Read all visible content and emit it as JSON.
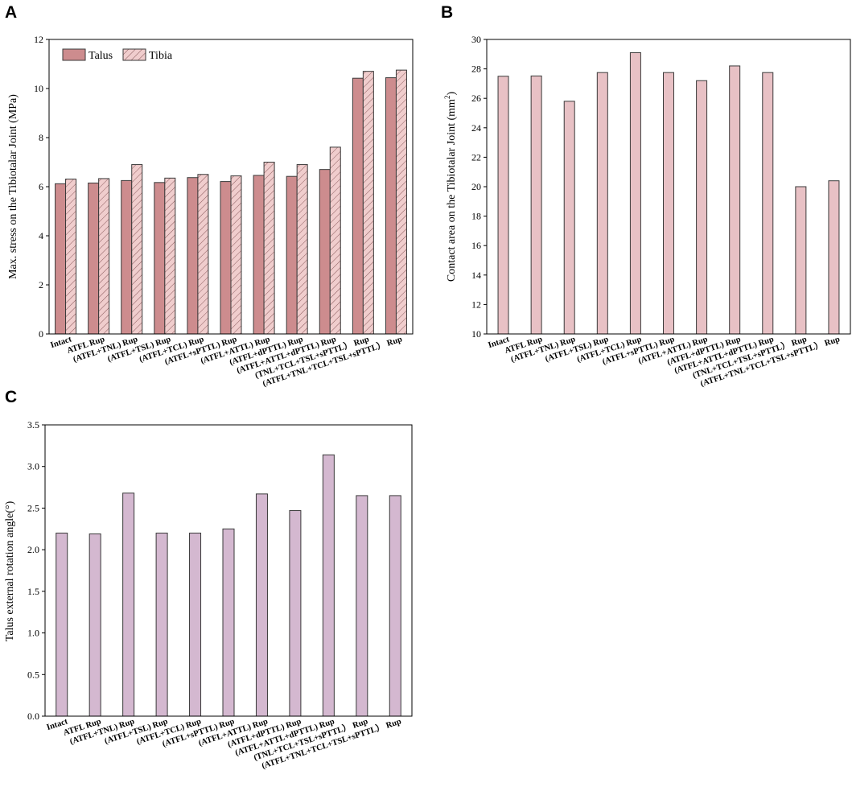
{
  "categories": [
    "Intact",
    "ATFL Rup",
    "(ATFL+TNL) Rup",
    "(ATFL+TSL) Rup",
    "(ATFL+TCL) Rup",
    "(ATFL+sPTTL) Rup",
    "(ATFL+ATTL) Rup",
    "(ATFL+dPTTL) Rup",
    "(ATFL+ATTL+dPTTL) Rup",
    "(TNL+TCL+TSL+sPTTL） Rup",
    "(ATFL+TNL+TCL+TSL+sPTTL） Rup"
  ],
  "colors": {
    "talus": "#cd8c8e",
    "tibia": "#f0cdcd",
    "contact": "#e8c1c5",
    "rotation": "#d4b8d0",
    "stroke": "#3a3a3a"
  },
  "chart_data": [
    {
      "panel": "A",
      "type": "bar",
      "ylabel": "Max. stress on the Tibiotalar Joint (MPa)",
      "ylim": [
        0,
        12
      ],
      "yticks": [
        0,
        2,
        4,
        6,
        8,
        10,
        12
      ],
      "yticklabels": [
        "0",
        "2",
        "4",
        "6",
        "8",
        "10",
        "12"
      ],
      "legend_position": "top-left",
      "series": [
        {
          "name": "Talus",
          "pattern": "solid",
          "values": [
            6.12,
            6.15,
            6.25,
            6.17,
            6.37,
            6.21,
            6.46,
            6.42,
            6.7,
            10.42,
            10.44
          ]
        },
        {
          "name": "Tibia",
          "pattern": "hatched",
          "values": [
            6.31,
            6.33,
            6.9,
            6.35,
            6.5,
            6.44,
            7.0,
            6.9,
            7.61,
            10.7,
            10.75
          ]
        }
      ]
    },
    {
      "panel": "B",
      "type": "bar",
      "ylabel": "Contact area on the Tibiotalar Joint (mm",
      "ylabel_sup": "2",
      "ylabel_end": ")",
      "ylim": [
        10,
        30
      ],
      "yticks": [
        10,
        12,
        14,
        16,
        18,
        20,
        22,
        24,
        26,
        28,
        30
      ],
      "yticklabels": [
        "10",
        "12",
        "14",
        "16",
        "18",
        "20",
        "22",
        "24",
        "26",
        "28",
        "30"
      ],
      "series": [
        {
          "name": "Contact area",
          "values": [
            27.5,
            27.52,
            25.8,
            27.75,
            29.1,
            27.75,
            27.2,
            28.2,
            27.75,
            20.0,
            20.4
          ]
        }
      ]
    },
    {
      "panel": "C",
      "type": "bar",
      "ylabel": "Talus external rotation angle(°)",
      "ylim": [
        0,
        3.5
      ],
      "yticks": [
        0,
        0.5,
        1.0,
        1.5,
        2.0,
        2.5,
        3.0,
        3.5
      ],
      "yticklabels": [
        "0.0",
        "0.5",
        "1.0",
        "1.5",
        "2.0",
        "2.5",
        "3.0",
        "3.5"
      ],
      "series": [
        {
          "name": "Rotation angle",
          "values": [
            2.2,
            2.19,
            2.68,
            2.2,
            2.2,
            2.25,
            2.67,
            2.47,
            3.14,
            2.65,
            2.65
          ]
        }
      ]
    }
  ]
}
